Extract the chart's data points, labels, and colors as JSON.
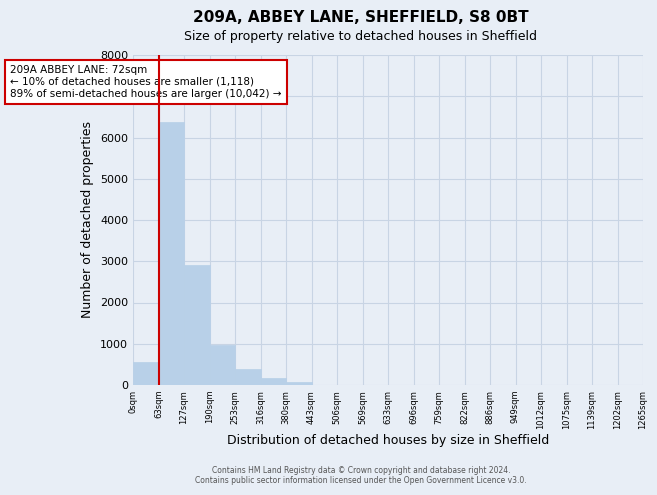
{
  "title": "209A, ABBEY LANE, SHEFFIELD, S8 0BT",
  "subtitle": "Size of property relative to detached houses in Sheffield",
  "xlabel": "Distribution of detached houses by size in Sheffield",
  "ylabel": "Number of detached properties",
  "bar_values": [
    550,
    6380,
    2920,
    970,
    380,
    170,
    80,
    0,
    0,
    0,
    0,
    0,
    0,
    0,
    0,
    0,
    0,
    0,
    0,
    0
  ],
  "bin_labels": [
    "0sqm",
    "63sqm",
    "127sqm",
    "190sqm",
    "253sqm",
    "316sqm",
    "380sqm",
    "443sqm",
    "506sqm",
    "569sqm",
    "633sqm",
    "696sqm",
    "759sqm",
    "822sqm",
    "886sqm",
    "949sqm",
    "1012sqm",
    "1075sqm",
    "1139sqm",
    "1202sqm",
    "1265sqm"
  ],
  "bar_color": "#b8d0e8",
  "bar_edge_color": "#b8d0e8",
  "grid_color": "#c8d4e4",
  "bg_color": "#e8eef6",
  "vline_x": 1,
  "vline_color": "#cc0000",
  "ylim": [
    0,
    8000
  ],
  "annotation_title": "209A ABBEY LANE: 72sqm",
  "annotation_line1": "← 10% of detached houses are smaller (1,118)",
  "annotation_line2": "89% of semi-detached houses are larger (10,042) →",
  "footer1": "Contains HM Land Registry data © Crown copyright and database right 2024.",
  "footer2": "Contains public sector information licensed under the Open Government Licence v3.0."
}
